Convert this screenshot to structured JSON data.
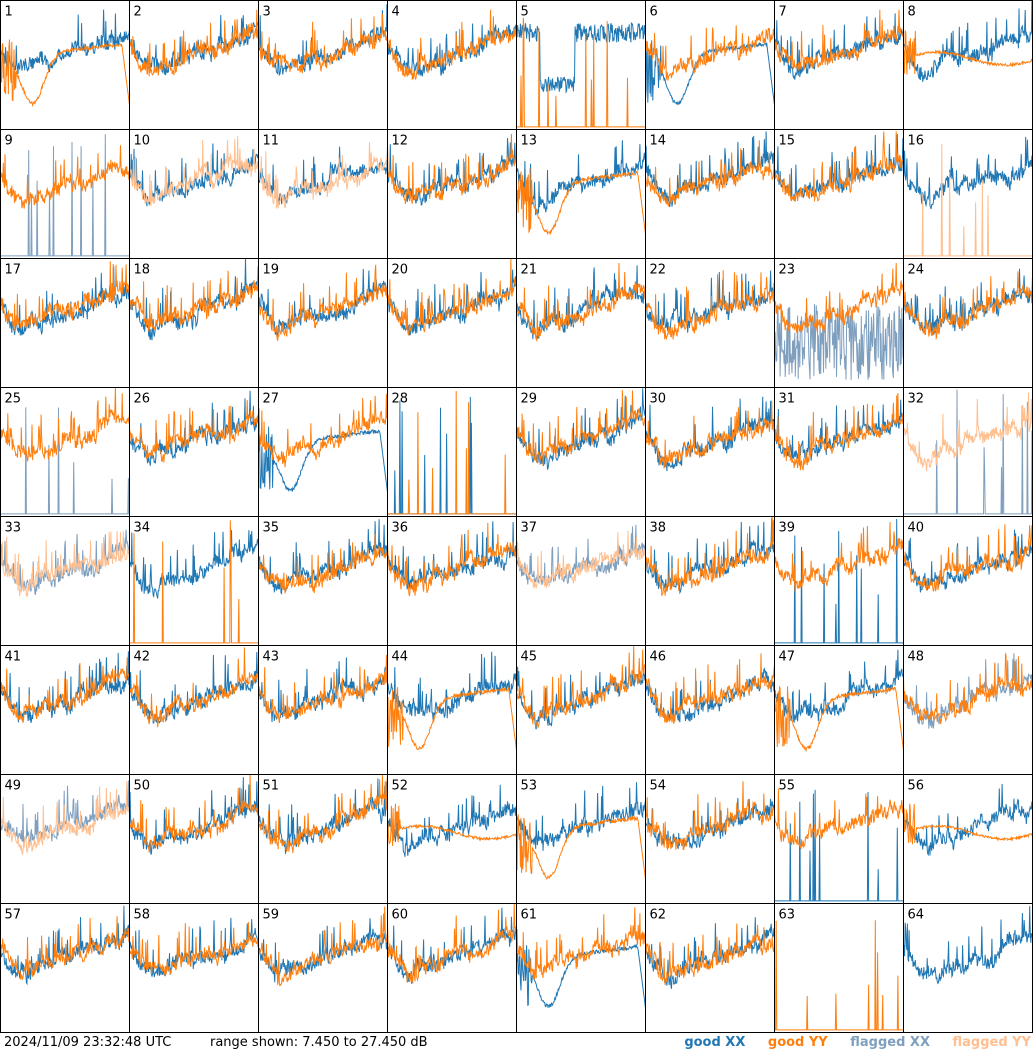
{
  "footer": {
    "timestamp": "2024/11/09 23:32:48 UTC",
    "range_text": "range shown: 7.450 to 27.450 dB"
  },
  "legend": [
    {
      "label": "good XX",
      "color": "#1f77b4"
    },
    {
      "label": "good YY",
      "color": "#ff7f0e"
    },
    {
      "label": "flagged XX",
      "color": "#7f9fbf"
    },
    {
      "label": "flagged YY",
      "color": "#ffbf8f"
    }
  ],
  "chart_data": {
    "type": "line",
    "ylim": [
      7.45,
      27.45
    ],
    "grid_rows": 8,
    "grid_cols": 8,
    "panels": [
      {
        "id": "1",
        "xx": "good",
        "yy": "good",
        "xx_shape": "normal",
        "yy_shape": "droop"
      },
      {
        "id": "2",
        "xx": "good",
        "yy": "good",
        "xx_shape": "normal",
        "yy_shape": "normal"
      },
      {
        "id": "3",
        "xx": "good",
        "yy": "good",
        "xx_shape": "normal",
        "yy_shape": "normal"
      },
      {
        "id": "4",
        "xx": "good",
        "yy": "good",
        "xx_shape": "normal",
        "yy_shape": "normal"
      },
      {
        "id": "5",
        "xx": "good",
        "yy": "good",
        "xx_shape": "dip",
        "yy_shape": "spikes"
      },
      {
        "id": "6",
        "xx": "good",
        "yy": "good",
        "xx_shape": "droop",
        "yy_shape": "normal"
      },
      {
        "id": "7",
        "xx": "good",
        "yy": "good",
        "xx_shape": "normal",
        "yy_shape": "normal"
      },
      {
        "id": "8",
        "xx": "good",
        "yy": "good",
        "xx_shape": "normal",
        "yy_shape": "smooth"
      },
      {
        "id": "9",
        "xx": "flagged",
        "yy": "good",
        "xx_shape": "spikes",
        "yy_shape": "normal"
      },
      {
        "id": "10",
        "xx": "good",
        "yy": "flagged",
        "xx_shape": "normal",
        "yy_shape": "normal"
      },
      {
        "id": "11",
        "xx": "good",
        "yy": "flagged",
        "xx_shape": "normal",
        "yy_shape": "normal"
      },
      {
        "id": "12",
        "xx": "good",
        "yy": "good",
        "xx_shape": "normal",
        "yy_shape": "normal"
      },
      {
        "id": "13",
        "xx": "good",
        "yy": "good",
        "xx_shape": "normal",
        "yy_shape": "droop"
      },
      {
        "id": "14",
        "xx": "good",
        "yy": "good",
        "xx_shape": "normal",
        "yy_shape": "normal"
      },
      {
        "id": "15",
        "xx": "good",
        "yy": "good",
        "xx_shape": "normal",
        "yy_shape": "normal"
      },
      {
        "id": "16",
        "xx": "good",
        "yy": "flagged",
        "xx_shape": "normal",
        "yy_shape": "spikes"
      },
      {
        "id": "17",
        "xx": "good",
        "yy": "good",
        "xx_shape": "normal",
        "yy_shape": "normal"
      },
      {
        "id": "18",
        "xx": "good",
        "yy": "good",
        "xx_shape": "normal",
        "yy_shape": "normal"
      },
      {
        "id": "19",
        "xx": "good",
        "yy": "good",
        "xx_shape": "normal",
        "yy_shape": "normal"
      },
      {
        "id": "20",
        "xx": "good",
        "yy": "good",
        "xx_shape": "normal",
        "yy_shape": "normal"
      },
      {
        "id": "21",
        "xx": "good",
        "yy": "good",
        "xx_shape": "normal",
        "yy_shape": "normal"
      },
      {
        "id": "22",
        "xx": "good",
        "yy": "good",
        "xx_shape": "normal",
        "yy_shape": "normal"
      },
      {
        "id": "23",
        "xx": "flagged",
        "yy": "good",
        "xx_shape": "noisy",
        "yy_shape": "normal"
      },
      {
        "id": "24",
        "xx": "good",
        "yy": "good",
        "xx_shape": "normal",
        "yy_shape": "normal"
      },
      {
        "id": "25",
        "xx": "flagged",
        "yy": "good",
        "xx_shape": "spikes",
        "yy_shape": "normal"
      },
      {
        "id": "26",
        "xx": "good",
        "yy": "good",
        "xx_shape": "normal",
        "yy_shape": "normal"
      },
      {
        "id": "27",
        "xx": "good",
        "yy": "good",
        "xx_shape": "droop",
        "yy_shape": "normal"
      },
      {
        "id": "28",
        "xx": "good",
        "yy": "good",
        "xx_shape": "spikes",
        "yy_shape": "spikes"
      },
      {
        "id": "29",
        "xx": "good",
        "yy": "good",
        "xx_shape": "normal",
        "yy_shape": "normal"
      },
      {
        "id": "30",
        "xx": "good",
        "yy": "good",
        "xx_shape": "normal",
        "yy_shape": "normal"
      },
      {
        "id": "31",
        "xx": "good",
        "yy": "good",
        "xx_shape": "normal",
        "yy_shape": "normal"
      },
      {
        "id": "32",
        "xx": "flagged",
        "yy": "flagged",
        "xx_shape": "spikes",
        "yy_shape": "normal"
      },
      {
        "id": "33",
        "xx": "flagged",
        "yy": "flagged",
        "xx_shape": "normal",
        "yy_shape": "normal"
      },
      {
        "id": "34",
        "xx": "good",
        "yy": "good",
        "xx_shape": "normal",
        "yy_shape": "spikes"
      },
      {
        "id": "35",
        "xx": "good",
        "yy": "good",
        "xx_shape": "normal",
        "yy_shape": "normal"
      },
      {
        "id": "36",
        "xx": "good",
        "yy": "good",
        "xx_shape": "normal",
        "yy_shape": "normal"
      },
      {
        "id": "37",
        "xx": "flagged",
        "yy": "flagged",
        "xx_shape": "normal",
        "yy_shape": "normal"
      },
      {
        "id": "38",
        "xx": "good",
        "yy": "good",
        "xx_shape": "normal",
        "yy_shape": "normal"
      },
      {
        "id": "39",
        "xx": "good",
        "yy": "good",
        "xx_shape": "spikes",
        "yy_shape": "normal"
      },
      {
        "id": "40",
        "xx": "good",
        "yy": "good",
        "xx_shape": "normal",
        "yy_shape": "normal"
      },
      {
        "id": "41",
        "xx": "good",
        "yy": "good",
        "xx_shape": "normal",
        "yy_shape": "normal"
      },
      {
        "id": "42",
        "xx": "good",
        "yy": "good",
        "xx_shape": "normal",
        "yy_shape": "normal"
      },
      {
        "id": "43",
        "xx": "good",
        "yy": "good",
        "xx_shape": "normal",
        "yy_shape": "normal"
      },
      {
        "id": "44",
        "xx": "good",
        "yy": "good",
        "xx_shape": "normal",
        "yy_shape": "droop"
      },
      {
        "id": "45",
        "xx": "good",
        "yy": "good",
        "xx_shape": "normal",
        "yy_shape": "normal"
      },
      {
        "id": "46",
        "xx": "good",
        "yy": "good",
        "xx_shape": "normal",
        "yy_shape": "normal"
      },
      {
        "id": "47",
        "xx": "good",
        "yy": "good",
        "xx_shape": "normal",
        "yy_shape": "droop"
      },
      {
        "id": "48",
        "xx": "flagged",
        "yy": "good",
        "xx_shape": "normal",
        "yy_shape": "normal"
      },
      {
        "id": "49",
        "xx": "flagged",
        "yy": "flagged",
        "xx_shape": "normal",
        "yy_shape": "normal"
      },
      {
        "id": "50",
        "xx": "good",
        "yy": "good",
        "xx_shape": "normal",
        "yy_shape": "normal"
      },
      {
        "id": "51",
        "xx": "good",
        "yy": "good",
        "xx_shape": "normal",
        "yy_shape": "normal"
      },
      {
        "id": "52",
        "xx": "good",
        "yy": "good",
        "xx_shape": "normal",
        "yy_shape": "smooth"
      },
      {
        "id": "53",
        "xx": "good",
        "yy": "good",
        "xx_shape": "normal",
        "yy_shape": "droop"
      },
      {
        "id": "54",
        "xx": "good",
        "yy": "good",
        "xx_shape": "normal",
        "yy_shape": "normal"
      },
      {
        "id": "55",
        "xx": "good",
        "yy": "good",
        "xx_shape": "spikes",
        "yy_shape": "normal"
      },
      {
        "id": "56",
        "xx": "good",
        "yy": "good",
        "xx_shape": "normal",
        "yy_shape": "smooth"
      },
      {
        "id": "57",
        "xx": "good",
        "yy": "good",
        "xx_shape": "normal",
        "yy_shape": "normal"
      },
      {
        "id": "58",
        "xx": "good",
        "yy": "good",
        "xx_shape": "normal",
        "yy_shape": "normal"
      },
      {
        "id": "59",
        "xx": "good",
        "yy": "good",
        "xx_shape": "normal",
        "yy_shape": "normal"
      },
      {
        "id": "60",
        "xx": "good",
        "yy": "good",
        "xx_shape": "normal",
        "yy_shape": "normal"
      },
      {
        "id": "61",
        "xx": "good",
        "yy": "good",
        "xx_shape": "droop",
        "yy_shape": "normal"
      },
      {
        "id": "62",
        "xx": "good",
        "yy": "good",
        "xx_shape": "normal",
        "yy_shape": "normal"
      },
      {
        "id": "63",
        "xx": "good",
        "yy": "good",
        "xx_shape": "none",
        "yy_shape": "spikes"
      },
      {
        "id": "64",
        "xx": "good",
        "yy": "good",
        "xx_shape": "normal",
        "yy_shape": "none"
      }
    ]
  }
}
